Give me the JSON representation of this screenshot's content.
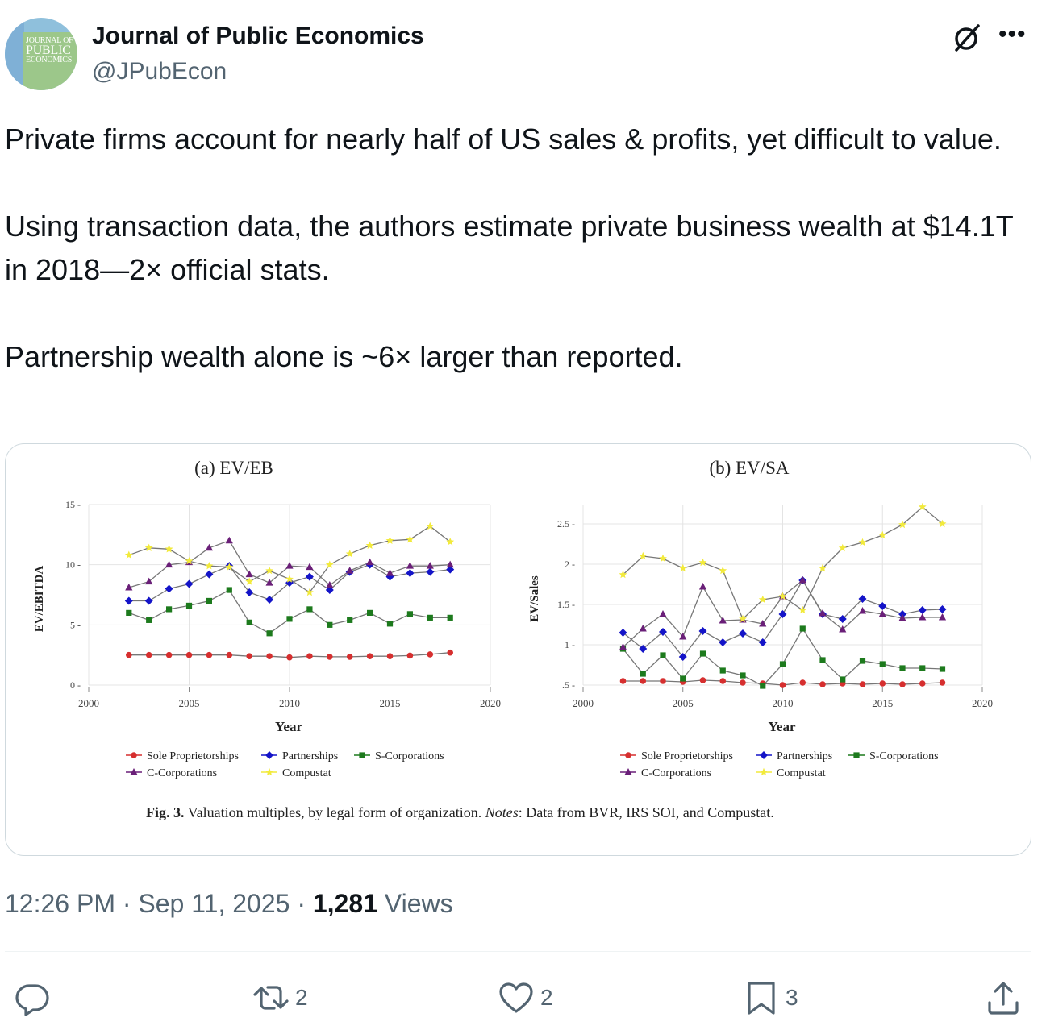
{
  "account": {
    "name": "Journal of Public Economics",
    "handle": "@JPubEcon",
    "avatar_text": {
      "line1": "JOURNAL OF",
      "line2": "PUBLIC",
      "line3": "ECONOMICS"
    }
  },
  "tweet": {
    "paragraph1": "Private firms account for nearly half of US sales & profits, yet difficult to value.",
    "paragraph2": "Using transaction data, the authors estimate private business wealth at $14.1T in 2018—2× official stats.",
    "paragraph3": "Partnership wealth alone is ~6× larger than reported."
  },
  "meta": {
    "time": "12:26 PM",
    "sep1": " · ",
    "date": "Sep 11, 2025",
    "sep2": " · ",
    "views_count": "1,281",
    "views_label": " Views"
  },
  "actions": {
    "reply_icon": "reply-icon",
    "retweet_icon": "retweet-icon",
    "retweet_count": "2",
    "like_icon": "heart-icon",
    "like_count": "2",
    "bookmark_icon": "bookmark-icon",
    "bookmark_count": "3",
    "share_icon": "share-icon"
  },
  "colors": {
    "accent": "#536471",
    "sole": "#d62f2f",
    "partnerships": "#1414c8",
    "scorp": "#1d7a1d",
    "ccorp": "#6a1f78",
    "compustat": "#f2ea3c"
  },
  "figure_caption": {
    "label": "Fig. 3.",
    "text": " Valuation multiples, by legal form of organization. ",
    "notes_label": "Notes",
    "notes_text": ": Data from BVR, IRS SOI, and Compustat."
  },
  "chart_data": [
    {
      "type": "line",
      "title": "(a) EV/EB",
      "xlabel": "Year",
      "ylabel": "EV/EBITDA",
      "xlim": [
        2000,
        2020
      ],
      "ylim": [
        0,
        15
      ],
      "xticks": [
        "2000",
        "2005",
        "2010",
        "2015",
        "2020"
      ],
      "yticks": [
        "0",
        "5",
        "10",
        "15"
      ],
      "grid": true,
      "legend": "bottom",
      "x": [
        2002,
        2003,
        2004,
        2005,
        2006,
        2007,
        2008,
        2009,
        2010,
        2011,
        2012,
        2013,
        2014,
        2015,
        2016,
        2017,
        2018
      ],
      "series": [
        {
          "name": "Sole Proprietorships",
          "key": "sole",
          "marker": "circle",
          "values": [
            2.5,
            2.5,
            2.5,
            2.5,
            2.5,
            2.5,
            2.4,
            2.4,
            2.3,
            2.4,
            2.35,
            2.35,
            2.4,
            2.4,
            2.45,
            2.55,
            2.7
          ]
        },
        {
          "name": "Partnerships",
          "key": "partnerships",
          "marker": "diamond",
          "values": [
            7.0,
            7.0,
            8.0,
            8.4,
            9.2,
            9.9,
            7.7,
            7.1,
            8.5,
            9.0,
            7.9,
            9.4,
            10.0,
            9.0,
            9.3,
            9.4,
            9.6
          ]
        },
        {
          "name": "S-Corporations",
          "key": "scorp",
          "marker": "square",
          "values": [
            6.0,
            5.4,
            6.3,
            6.6,
            7.0,
            7.9,
            5.2,
            4.3,
            5.5,
            6.3,
            5.0,
            5.4,
            6.0,
            5.1,
            5.9,
            5.6,
            5.6
          ]
        },
        {
          "name": "C-Corporations",
          "key": "ccorp",
          "marker": "triangle",
          "values": [
            8.1,
            8.6,
            10.0,
            10.2,
            11.4,
            12.0,
            9.2,
            8.5,
            9.9,
            9.8,
            8.3,
            9.5,
            10.2,
            9.3,
            9.9,
            9.9,
            10.0
          ]
        },
        {
          "name": "Compustat",
          "key": "compustat",
          "marker": "star",
          "values": [
            10.8,
            11.4,
            11.3,
            10.3,
            9.9,
            9.8,
            8.6,
            9.5,
            8.8,
            7.7,
            10.0,
            10.9,
            11.6,
            12.0,
            12.1,
            13.2,
            11.9
          ]
        }
      ]
    },
    {
      "type": "line",
      "title": "(b) EV/SA",
      "xlabel": "Year",
      "ylabel": "EV/Sales",
      "xlim": [
        2000,
        2020
      ],
      "ylim": [
        0.5,
        2.5
      ],
      "xticks": [
        "2000",
        "2005",
        "2010",
        "2015",
        "2020"
      ],
      "yticks": [
        ".5",
        "1",
        "1.5",
        "2",
        "2.5"
      ],
      "grid": true,
      "legend": "bottom",
      "x": [
        2002,
        2003,
        2004,
        2005,
        2006,
        2007,
        2008,
        2009,
        2010,
        2011,
        2012,
        2013,
        2014,
        2015,
        2016,
        2017,
        2018
      ],
      "series": [
        {
          "name": "Sole Proprietorships",
          "key": "sole",
          "marker": "circle",
          "values": [
            0.55,
            0.55,
            0.55,
            0.54,
            0.56,
            0.55,
            0.53,
            0.52,
            0.5,
            0.53,
            0.51,
            0.52,
            0.51,
            0.52,
            0.51,
            0.52,
            0.53
          ]
        },
        {
          "name": "Partnerships",
          "key": "partnerships",
          "marker": "diamond",
          "values": [
            1.15,
            0.95,
            1.16,
            0.85,
            1.17,
            1.03,
            1.14,
            1.03,
            1.38,
            1.8,
            1.38,
            1.32,
            1.57,
            1.48,
            1.38,
            1.43,
            1.44
          ]
        },
        {
          "name": "S-Corporations",
          "key": "scorp",
          "marker": "square",
          "values": [
            0.95,
            0.64,
            0.87,
            0.58,
            0.89,
            0.68,
            0.62,
            0.49,
            0.76,
            1.2,
            0.81,
            0.57,
            0.8,
            0.76,
            0.71,
            0.71,
            0.7
          ]
        },
        {
          "name": "C-Corporations",
          "key": "ccorp",
          "marker": "triangle",
          "values": [
            0.97,
            1.2,
            1.38,
            1.1,
            1.72,
            1.3,
            1.31,
            1.26,
            1.6,
            1.8,
            1.39,
            1.19,
            1.42,
            1.38,
            1.33,
            1.34,
            1.34
          ]
        },
        {
          "name": "Compustat",
          "key": "compustat",
          "marker": "star",
          "values": [
            1.87,
            2.1,
            2.07,
            1.95,
            2.02,
            1.92,
            1.32,
            1.56,
            1.6,
            1.43,
            1.95,
            2.2,
            2.27,
            2.36,
            2.49,
            2.71,
            2.5
          ]
        }
      ]
    }
  ]
}
